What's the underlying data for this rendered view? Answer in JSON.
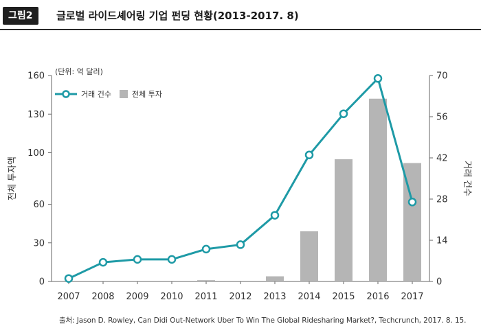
{
  "header": {
    "figure_label": "그림2",
    "title": "글로벌 라이드셰어링 기업 펀딩 현황(2013-2017. 8)"
  },
  "source": "출처: Jason D. Rowley, Can Didi Out-Network Uber To Win The Global Ridesharing Market?, Techcrunch, 2017. 8. 15.",
  "chart_data": {
    "type": "bar+line",
    "unit_note": "(단위: 억 달러)",
    "categories": [
      "2007",
      "2008",
      "2009",
      "2010",
      "2011",
      "2012",
      "2013",
      "2014",
      "2015",
      "2016",
      "2017"
    ],
    "bar_series": {
      "name": "전체 투자",
      "axis": "left",
      "values": [
        0,
        0,
        0,
        0,
        1,
        0,
        4,
        39,
        95,
        142,
        92
      ]
    },
    "line_series": {
      "name": "거래 건수",
      "axis": "right",
      "values": [
        1,
        6.5,
        7.5,
        7.5,
        11,
        12.5,
        22.5,
        43,
        57,
        69,
        27
      ]
    },
    "left_axis": {
      "label": "전체 투자액",
      "ylim": [
        0,
        160
      ],
      "ticks": [
        0,
        30,
        60,
        100,
        130,
        160
      ]
    },
    "right_axis": {
      "label": "거래 건수",
      "ylim": [
        0,
        70
      ],
      "ticks": [
        0,
        14,
        28,
        42,
        56,
        70
      ]
    },
    "legend": {
      "placement": "top-left"
    },
    "colors": {
      "bar": "#b5b5b5",
      "line": "#1e9aa6",
      "marker_fill": "#ffffff"
    }
  }
}
